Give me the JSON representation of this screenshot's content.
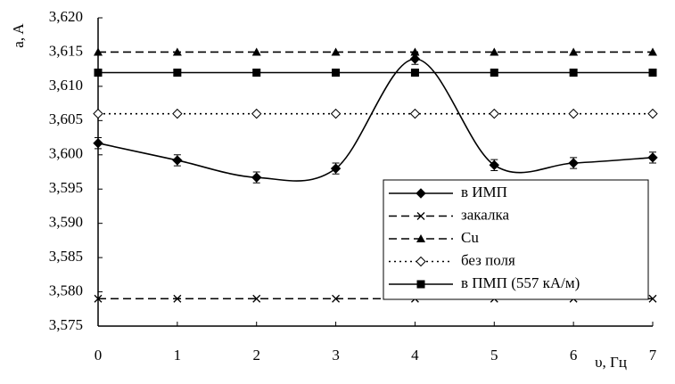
{
  "chart_data": {
    "type": "line",
    "y_label": "a, A",
    "x_label": "υ, Гц",
    "x": [
      0,
      1,
      2,
      3,
      4,
      5,
      6,
      7
    ],
    "xlim": [
      0,
      7
    ],
    "xticks": [
      0,
      1,
      2,
      3,
      4,
      5,
      6,
      7
    ],
    "ylim": [
      3.575,
      3.62
    ],
    "yticks": [
      {
        "value": 3.575,
        "label": "3,575"
      },
      {
        "value": 3.58,
        "label": "3,580"
      },
      {
        "value": 3.585,
        "label": "3,585"
      },
      {
        "value": 3.59,
        "label": "3,590"
      },
      {
        "value": 3.595,
        "label": "3,595"
      },
      {
        "value": 3.6,
        "label": "3,600"
      },
      {
        "value": 3.605,
        "label": "3,605"
      },
      {
        "value": 3.61,
        "label": "3,610"
      },
      {
        "value": 3.615,
        "label": "3,615"
      },
      {
        "value": 3.62,
        "label": "3,620"
      }
    ],
    "legend": "lower right",
    "series": [
      {
        "name": "в ИМП",
        "color": "#000000",
        "style": "solid",
        "marker": "diamond",
        "smooth": true,
        "values": [
          3.6017,
          3.5992,
          3.5967,
          3.598,
          3.614,
          3.5985,
          3.5988,
          3.5996
        ],
        "errors": [
          0.0008,
          0.0008,
          0.0008,
          0.0008,
          0.0008,
          0.0008,
          0.0008,
          0.0008
        ]
      },
      {
        "name": "закалка",
        "color": "#000000",
        "style": "dashed",
        "marker": "x",
        "values": [
          3.579,
          3.579,
          3.579,
          3.579,
          3.579,
          3.579,
          3.579,
          3.579
        ]
      },
      {
        "name": "Cu",
        "color": "#000000",
        "style": "dashed",
        "marker": "triangle",
        "values": [
          3.615,
          3.615,
          3.615,
          3.615,
          3.615,
          3.615,
          3.615,
          3.615
        ]
      },
      {
        "name": "без поля",
        "color": "#000000",
        "style": "dotted",
        "marker": "open-diamond",
        "values": [
          3.606,
          3.606,
          3.606,
          3.606,
          3.606,
          3.606,
          3.606,
          3.606
        ]
      },
      {
        "name": "в ПМП (557 кА/м)",
        "color": "#000000",
        "style": "solid",
        "marker": "square",
        "values": [
          3.612,
          3.612,
          3.612,
          3.612,
          3.612,
          3.612,
          3.612,
          3.612
        ]
      }
    ]
  }
}
